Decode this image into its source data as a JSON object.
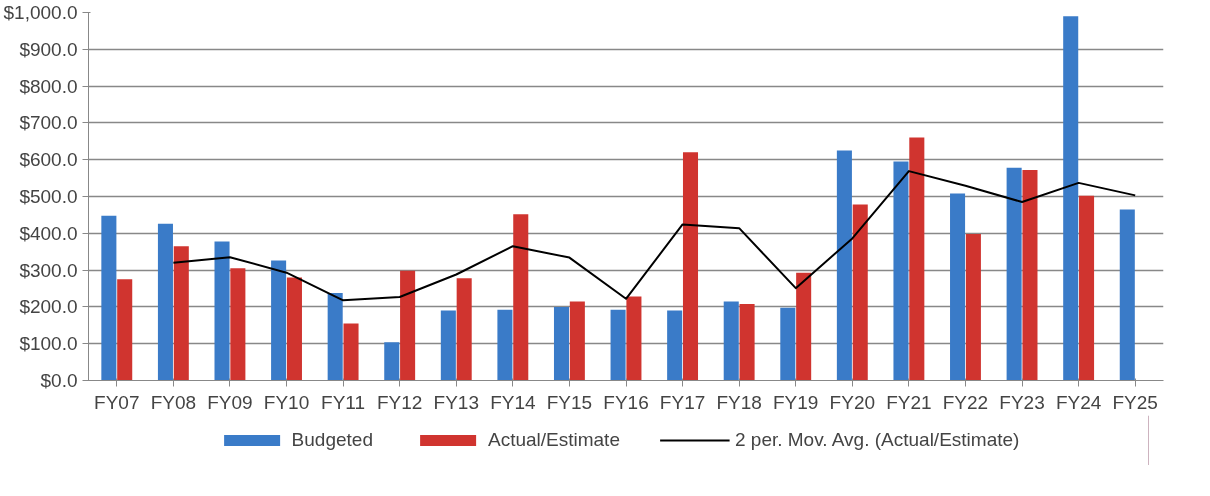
{
  "chart_data": {
    "type": "bar",
    "categories": [
      "FY07",
      "FY08",
      "FY09",
      "FY10",
      "FY11",
      "FY12",
      "FY13",
      "FY14",
      "FY15",
      "FY16",
      "FY17",
      "FY18",
      "FY19",
      "FY20",
      "FY21",
      "FY22",
      "FY23",
      "FY24",
      "FY25"
    ],
    "series": [
      {
        "name": "Budgeted",
        "color": "#3a7bc8",
        "values": [
          448,
          426,
          378,
          326,
          238,
          104,
          190,
          192,
          200,
          192,
          190,
          215,
          198,
          625,
          595,
          508,
          578,
          990,
          465
        ]
      },
      {
        "name": "Actual/Estimate",
        "color": "#d0342f",
        "values": [
          275,
          365,
          305,
          280,
          155,
          298,
          278,
          452,
          215,
          228,
          620,
          208,
          293,
          478,
          660,
          398,
          572,
          502,
          null
        ]
      },
      {
        "name": "2 per. Mov. Avg. (Actual/Estimate)",
        "type": "line",
        "color": "#000000",
        "values": [
          null,
          320,
          335,
          293,
          218,
          227,
          288,
          365,
          334,
          222,
          424,
          414,
          251,
          386,
          569,
          529,
          485,
          537,
          503
        ]
      }
    ],
    "ylim": [
      0,
      1000
    ],
    "yticks": [
      {
        "value": 0,
        "label": "$0.0"
      },
      {
        "value": 100,
        "label": "$100.0"
      },
      {
        "value": 200,
        "label": "$200.0"
      },
      {
        "value": 300,
        "label": "$300.0"
      },
      {
        "value": 400,
        "label": "$400.0"
      },
      {
        "value": 500,
        "label": "$500.0"
      },
      {
        "value": 600,
        "label": "$600.0"
      },
      {
        "value": 700,
        "label": "$700.0"
      },
      {
        "value": 800,
        "label": "$800.0"
      },
      {
        "value": 900,
        "label": "$900.0"
      },
      {
        "value": 1000,
        "label": "$1,000.0"
      }
    ],
    "grid": "y",
    "legend": "bottom"
  }
}
